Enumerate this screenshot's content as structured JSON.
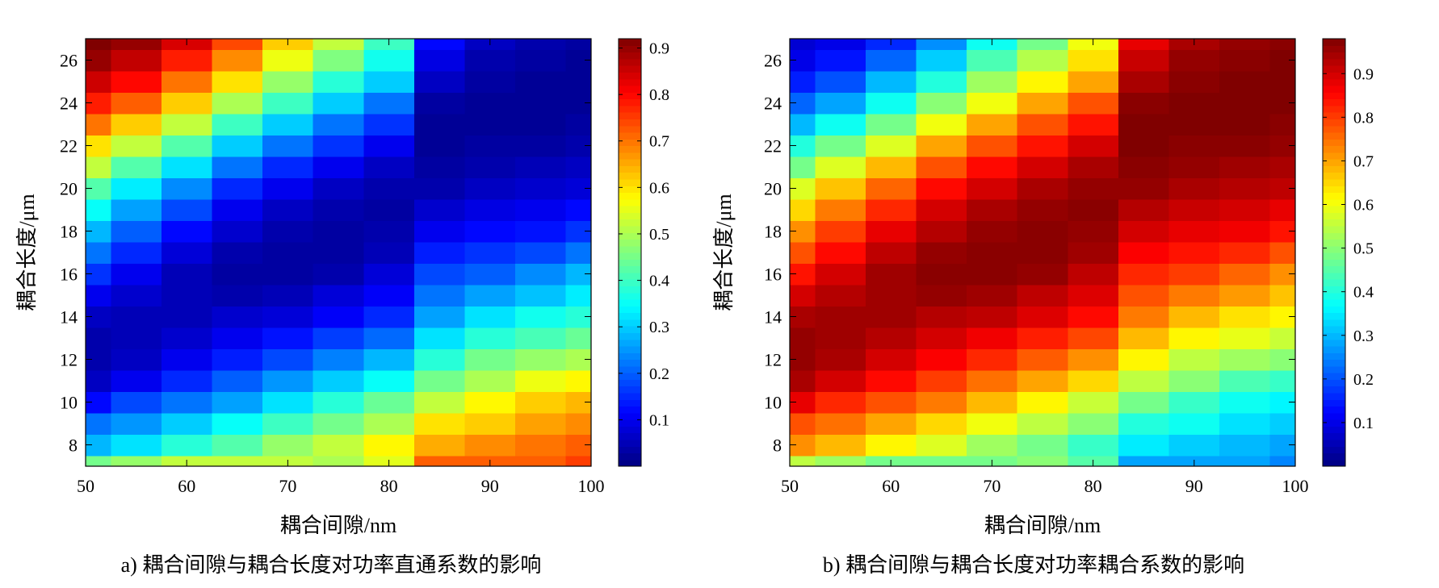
{
  "chart_data": [
    {
      "type": "heatmap",
      "panel_label": "a)",
      "caption": "a) 耦合间隙与耦合长度对功率直通系数的影响",
      "xlabel": "耦合间隙/nm",
      "ylabel": "耦合长度/μm",
      "xlim": [
        50,
        100
      ],
      "ylim": [
        7,
        27
      ],
      "x_ticks": [
        "50",
        "60",
        "70",
        "80",
        "90",
        "100"
      ],
      "y_ticks": [
        "8",
        "10",
        "12",
        "14",
        "16",
        "18",
        "20",
        "22",
        "24",
        "26"
      ],
      "x_centers": [
        50,
        55,
        60,
        65,
        70,
        75,
        80,
        85,
        90,
        95,
        100
      ],
      "y_centers": [
        7,
        8,
        9,
        10,
        11,
        12,
        13,
        14,
        15,
        16,
        17,
        18,
        19,
        20,
        21,
        22,
        23,
        24,
        25,
        26,
        27
      ],
      "colorbar_ticks": [
        "0.1",
        "0.2",
        "0.3",
        "0.4",
        "0.5",
        "0.6",
        "0.7",
        "0.8",
        "0.9"
      ],
      "clim": [
        0,
        0.92
      ],
      "colormap": "jet",
      "z": [
        [
          0.45,
          0.48,
          0.52,
          0.52,
          0.52,
          0.5,
          0.55,
          0.72,
          0.72,
          0.72,
          0.75
        ],
        [
          0.28,
          0.32,
          0.38,
          0.42,
          0.48,
          0.52,
          0.58,
          0.65,
          0.68,
          0.7,
          0.72
        ],
        [
          0.22,
          0.25,
          0.3,
          0.35,
          0.4,
          0.45,
          0.5,
          0.6,
          0.62,
          0.66,
          0.68
        ],
        [
          0.12,
          0.18,
          0.22,
          0.26,
          0.32,
          0.38,
          0.44,
          0.52,
          0.58,
          0.62,
          0.64
        ],
        [
          0.06,
          0.1,
          0.15,
          0.2,
          0.25,
          0.3,
          0.35,
          0.45,
          0.5,
          0.56,
          0.58
        ],
        [
          0.04,
          0.06,
          0.1,
          0.14,
          0.18,
          0.23,
          0.28,
          0.38,
          0.45,
          0.48,
          0.5
        ],
        [
          0.04,
          0.05,
          0.07,
          0.1,
          0.13,
          0.17,
          0.21,
          0.32,
          0.38,
          0.41,
          0.44
        ],
        [
          0.06,
          0.05,
          0.05,
          0.07,
          0.08,
          0.11,
          0.15,
          0.26,
          0.32,
          0.36,
          0.38
        ],
        [
          0.1,
          0.07,
          0.05,
          0.04,
          0.05,
          0.08,
          0.11,
          0.22,
          0.26,
          0.29,
          0.33
        ],
        [
          0.16,
          0.1,
          0.05,
          0.03,
          0.03,
          0.04,
          0.08,
          0.18,
          0.2,
          0.24,
          0.28
        ],
        [
          0.22,
          0.15,
          0.08,
          0.04,
          0.03,
          0.03,
          0.05,
          0.14,
          0.16,
          0.18,
          0.22
        ],
        [
          0.28,
          0.2,
          0.12,
          0.07,
          0.04,
          0.03,
          0.04,
          0.1,
          0.12,
          0.13,
          0.16
        ],
        [
          0.35,
          0.26,
          0.18,
          0.1,
          0.06,
          0.04,
          0.03,
          0.07,
          0.09,
          0.1,
          0.12
        ],
        [
          0.42,
          0.33,
          0.24,
          0.15,
          0.1,
          0.06,
          0.04,
          0.04,
          0.06,
          0.07,
          0.08
        ],
        [
          0.52,
          0.42,
          0.32,
          0.22,
          0.15,
          0.1,
          0.06,
          0.03,
          0.04,
          0.05,
          0.06
        ],
        [
          0.6,
          0.52,
          0.42,
          0.3,
          0.22,
          0.16,
          0.1,
          0.02,
          0.03,
          0.03,
          0.04
        ],
        [
          0.7,
          0.62,
          0.52,
          0.4,
          0.3,
          0.22,
          0.16,
          0.02,
          0.02,
          0.02,
          0.03
        ],
        [
          0.78,
          0.72,
          0.62,
          0.5,
          0.4,
          0.3,
          0.22,
          0.03,
          0.02,
          0.02,
          0.02
        ],
        [
          0.85,
          0.8,
          0.7,
          0.6,
          0.48,
          0.38,
          0.3,
          0.06,
          0.03,
          0.02,
          0.02
        ],
        [
          0.9,
          0.86,
          0.78,
          0.68,
          0.56,
          0.46,
          0.36,
          0.09,
          0.04,
          0.03,
          0.02
        ],
        [
          0.92,
          0.9,
          0.84,
          0.74,
          0.62,
          0.52,
          0.4,
          0.12,
          0.06,
          0.04,
          0.03
        ]
      ]
    },
    {
      "type": "heatmap",
      "panel_label": "b)",
      "caption": "b) 耦合间隙与耦合长度对功率耦合系数的影响",
      "xlabel": "耦合间隙/nm",
      "ylabel": "耦合长度/μm",
      "xlim": [
        50,
        100
      ],
      "ylim": [
        7,
        27
      ],
      "x_ticks": [
        "50",
        "60",
        "70",
        "80",
        "90",
        "100"
      ],
      "y_ticks": [
        "8",
        "10",
        "12",
        "14",
        "16",
        "18",
        "20",
        "22",
        "24",
        "26"
      ],
      "x_centers": [
        50,
        55,
        60,
        65,
        70,
        75,
        80,
        85,
        90,
        95,
        100
      ],
      "y_centers": [
        7,
        8,
        9,
        10,
        11,
        12,
        13,
        14,
        15,
        16,
        17,
        18,
        19,
        20,
        21,
        22,
        23,
        24,
        25,
        26,
        27
      ],
      "colorbar_ticks": [
        "0.1",
        "0.2",
        "0.3",
        "0.4",
        "0.5",
        "0.6",
        "0.7",
        "0.8",
        "0.9"
      ],
      "clim": [
        0,
        0.98
      ],
      "colormap": "jet",
      "z": [
        [
          0.55,
          0.52,
          0.48,
          0.48,
          0.48,
          0.5,
          0.45,
          0.28,
          0.28,
          0.28,
          0.25
        ],
        [
          0.72,
          0.68,
          0.62,
          0.58,
          0.52,
          0.48,
          0.42,
          0.35,
          0.32,
          0.3,
          0.28
        ],
        [
          0.78,
          0.75,
          0.7,
          0.65,
          0.6,
          0.55,
          0.5,
          0.4,
          0.38,
          0.34,
          0.32
        ],
        [
          0.88,
          0.82,
          0.78,
          0.74,
          0.68,
          0.62,
          0.56,
          0.48,
          0.42,
          0.38,
          0.36
        ],
        [
          0.94,
          0.9,
          0.85,
          0.8,
          0.75,
          0.7,
          0.65,
          0.55,
          0.5,
          0.44,
          0.42
        ],
        [
          0.96,
          0.94,
          0.9,
          0.86,
          0.82,
          0.77,
          0.72,
          0.62,
          0.55,
          0.52,
          0.5
        ],
        [
          0.96,
          0.95,
          0.93,
          0.9,
          0.87,
          0.83,
          0.79,
          0.68,
          0.62,
          0.59,
          0.56
        ],
        [
          0.94,
          0.95,
          0.95,
          0.93,
          0.92,
          0.89,
          0.85,
          0.74,
          0.68,
          0.64,
          0.62
        ],
        [
          0.9,
          0.93,
          0.95,
          0.96,
          0.95,
          0.92,
          0.89,
          0.78,
          0.74,
          0.71,
          0.67
        ],
        [
          0.84,
          0.9,
          0.95,
          0.97,
          0.97,
          0.96,
          0.92,
          0.82,
          0.8,
          0.76,
          0.72
        ],
        [
          0.78,
          0.85,
          0.92,
          0.96,
          0.97,
          0.97,
          0.95,
          0.86,
          0.84,
          0.82,
          0.78
        ],
        [
          0.72,
          0.8,
          0.88,
          0.93,
          0.96,
          0.97,
          0.96,
          0.9,
          0.88,
          0.87,
          0.84
        ],
        [
          0.65,
          0.74,
          0.82,
          0.9,
          0.94,
          0.96,
          0.97,
          0.93,
          0.91,
          0.9,
          0.88
        ],
        [
          0.58,
          0.67,
          0.76,
          0.85,
          0.9,
          0.94,
          0.96,
          0.96,
          0.94,
          0.93,
          0.92
        ],
        [
          0.48,
          0.58,
          0.68,
          0.78,
          0.85,
          0.9,
          0.94,
          0.97,
          0.96,
          0.95,
          0.94
        ],
        [
          0.4,
          0.48,
          0.58,
          0.7,
          0.78,
          0.84,
          0.9,
          0.98,
          0.97,
          0.97,
          0.96
        ],
        [
          0.3,
          0.38,
          0.48,
          0.6,
          0.7,
          0.78,
          0.84,
          0.98,
          0.98,
          0.98,
          0.97
        ],
        [
          0.22,
          0.28,
          0.38,
          0.5,
          0.6,
          0.7,
          0.78,
          0.97,
          0.98,
          0.98,
          0.98
        ],
        [
          0.15,
          0.2,
          0.3,
          0.4,
          0.52,
          0.62,
          0.7,
          0.94,
          0.97,
          0.98,
          0.98
        ],
        [
          0.1,
          0.14,
          0.22,
          0.32,
          0.44,
          0.54,
          0.64,
          0.91,
          0.96,
          0.97,
          0.98
        ],
        [
          0.08,
          0.1,
          0.16,
          0.26,
          0.38,
          0.48,
          0.6,
          0.88,
          0.94,
          0.96,
          0.97
        ]
      ]
    }
  ]
}
